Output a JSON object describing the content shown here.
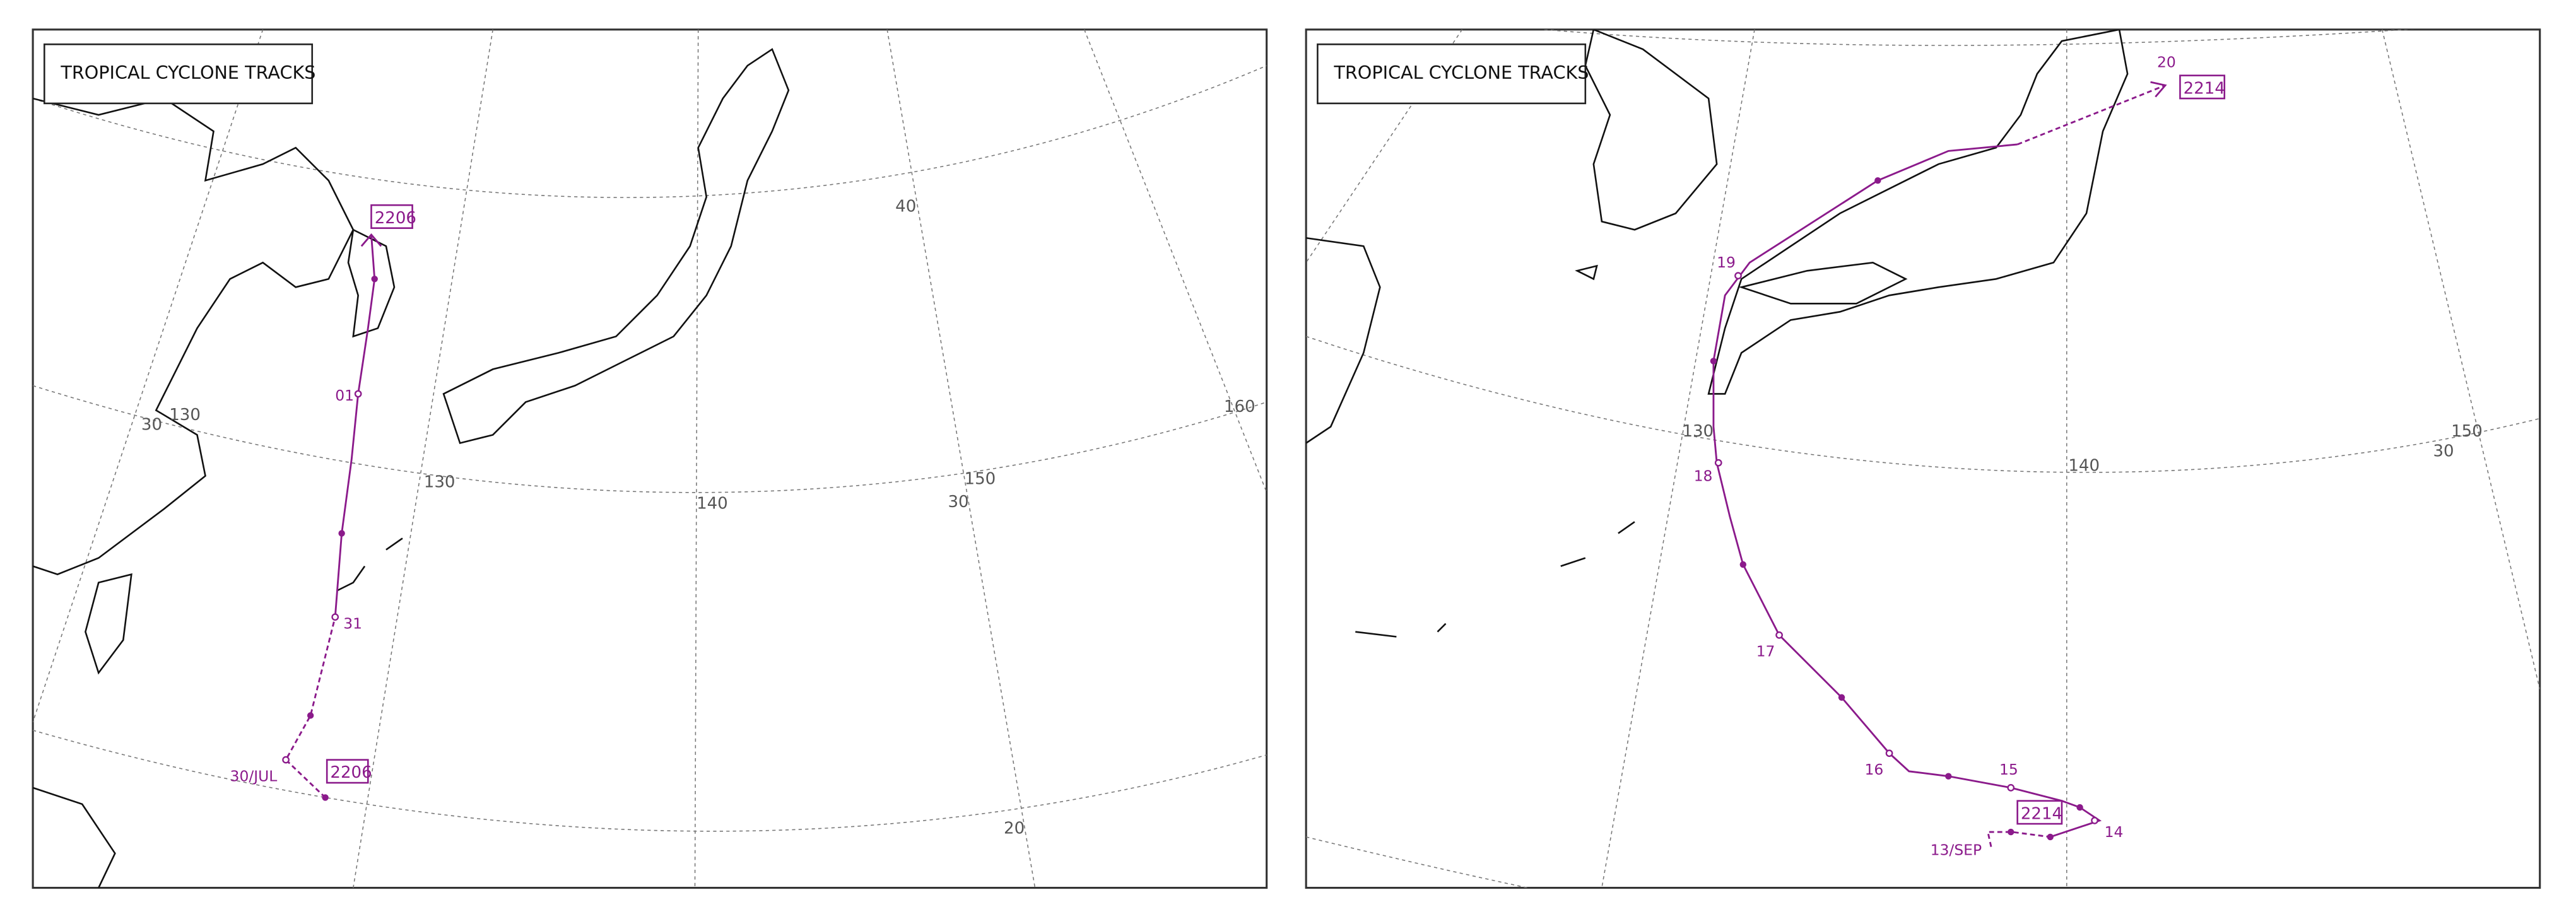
{
  "panels": [
    {
      "title": "TROPICAL CYCLONE TRACKS",
      "track_labels": [
        "2206",
        "01",
        "31",
        "30/JUL",
        "2206"
      ],
      "grid_labels": [
        "40",
        "30",
        "130",
        "140",
        "150",
        "30",
        "160",
        "130",
        "20"
      ]
    },
    {
      "title": "TROPICAL CYCLONE TRACKS",
      "track_labels": [
        "20",
        "2214",
        "19",
        "18",
        "17",
        "16",
        "15",
        "14",
        "13/SEP",
        "2214"
      ],
      "grid_labels": [
        "140",
        "150",
        "30",
        "130"
      ]
    }
  ]
}
